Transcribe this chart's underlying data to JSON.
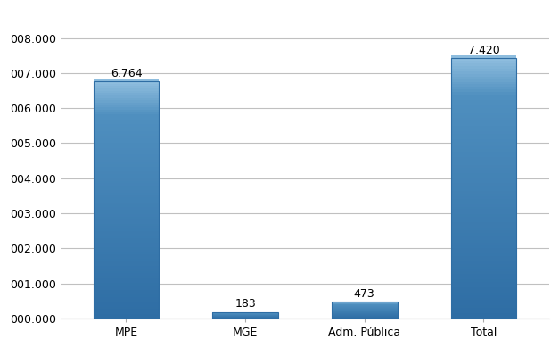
{
  "categories": [
    "MPE",
    "MGE",
    "Adm. Pública",
    "Total"
  ],
  "values": [
    6764,
    183,
    473,
    7420
  ],
  "bar_labels": [
    "6.764",
    "183",
    "473",
    "7.420"
  ],
  "bar_color_top": "#92C0E0",
  "bar_color_mid": "#4F8FBF",
  "bar_color_bot": "#2E6DA4",
  "bar_color_edge": "#2E6DA4",
  "yticks": [
    0,
    1000,
    2000,
    3000,
    4000,
    5000,
    6000,
    7000,
    8000
  ],
  "ytick_labels": [
    "000.000",
    "001.000",
    "002.000",
    "003.000",
    "004.000",
    "005.000",
    "006.000",
    "007.000",
    "008.000"
  ],
  "ylim_max": 8800,
  "background_color": "#FFFFFF",
  "plot_bg_color": "#FFFFFF",
  "grid_color": "#C0C0C0",
  "tick_fontsize": 9,
  "bar_label_fontsize": 9,
  "bar_width": 0.55
}
